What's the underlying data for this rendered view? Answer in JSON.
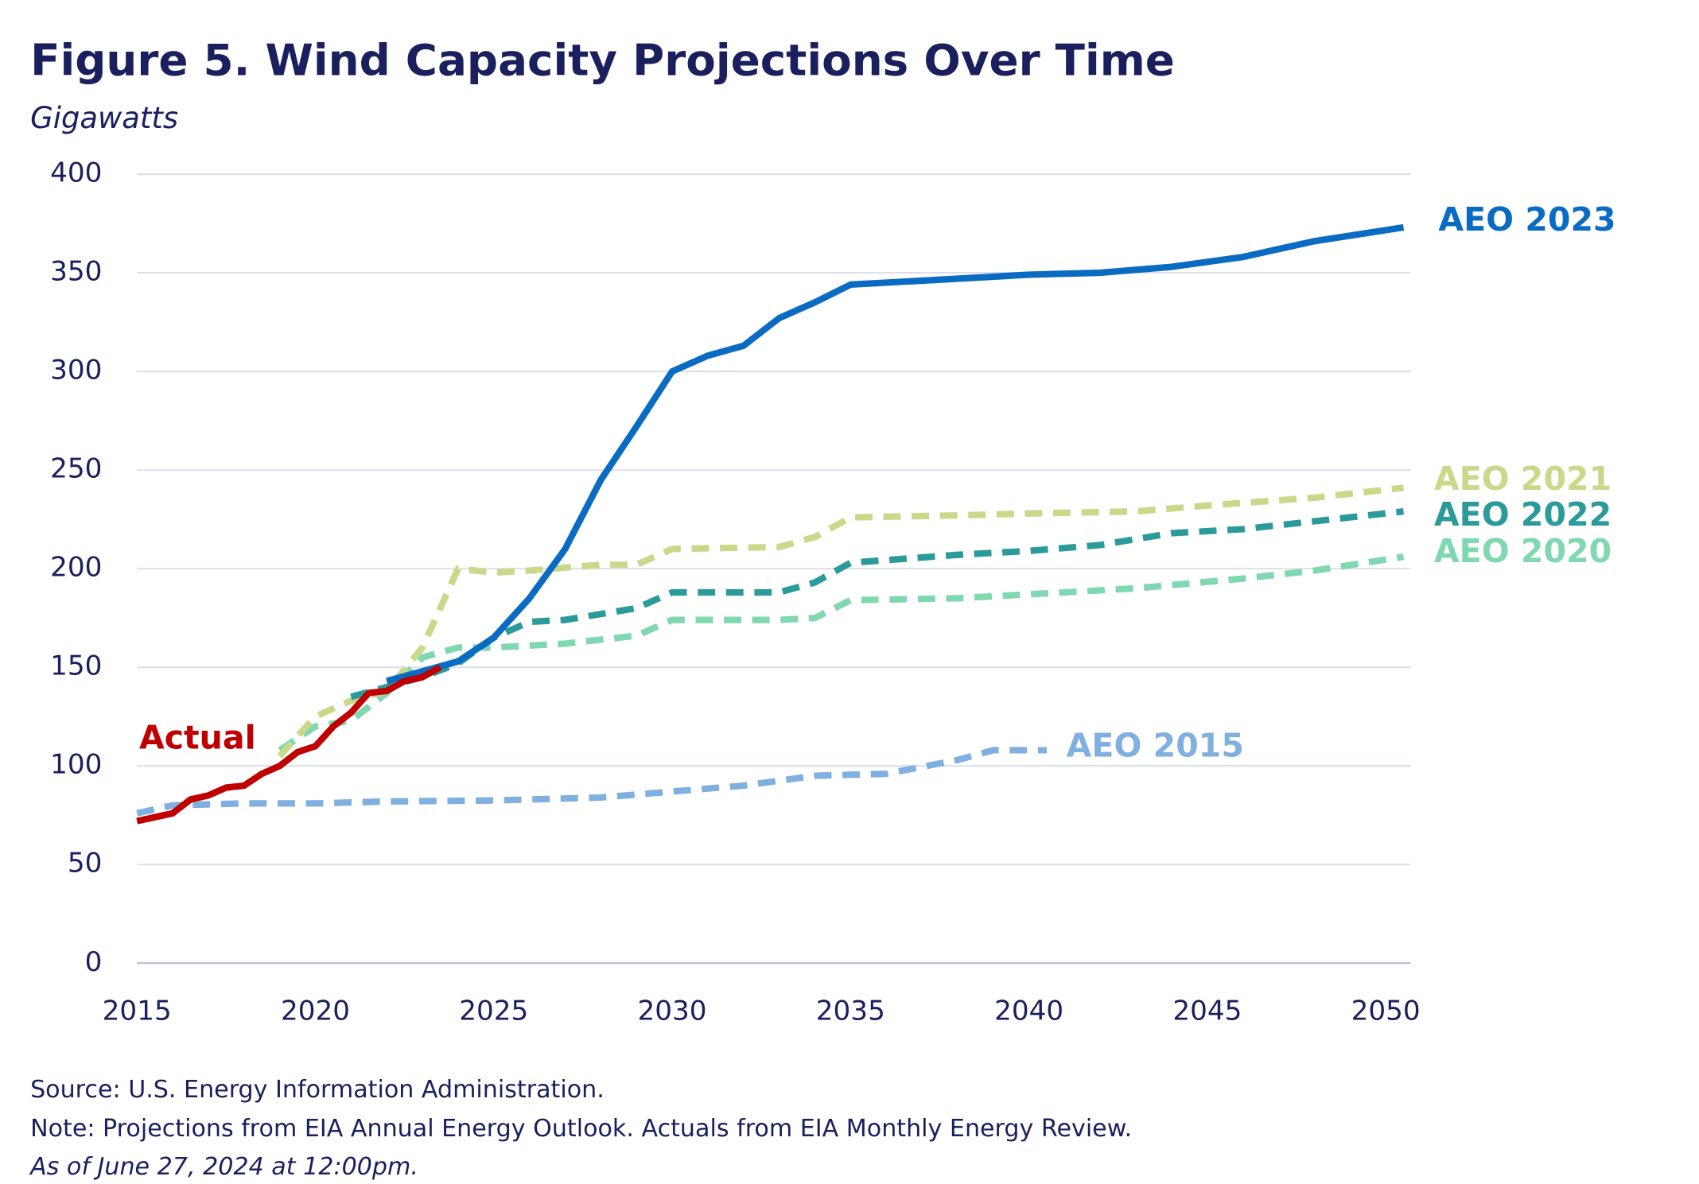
{
  "chart_data": {
    "type": "line",
    "title": "Figure 5. Wind Capacity Projections Over Time",
    "subtitle": "Gigawatts",
    "source": "Source: U.S. Energy Information Administration.",
    "note": "Note: Projections from EIA Annual Energy Outlook. Actuals from EIA Monthly Energy Review.",
    "as_of": "As of June 27, 2024 at 12:00pm.",
    "xlim": [
      2015,
      2050.7
    ],
    "xticks": [
      2015,
      2020,
      2025,
      2030,
      2035,
      2040,
      2045,
      2050
    ],
    "ylim": [
      0,
      400
    ],
    "yticks": [
      0,
      50,
      100,
      150,
      200,
      250,
      300,
      350,
      400
    ],
    "grid": true,
    "series": [
      {
        "name": "AEO 2015",
        "color": "#7fb0e0",
        "dashed": true,
        "x": [
          2015,
          2016,
          2018,
          2020,
          2022,
          2025,
          2028,
          2030,
          2032,
          2034,
          2036,
          2038,
          2039,
          2040.5
        ],
        "values": [
          76,
          80,
          81,
          81,
          82,
          82.5,
          84,
          87,
          90,
          95,
          96,
          103,
          108,
          108
        ]
      },
      {
        "name": "AEO 2020",
        "color": "#7fd8b0",
        "dashed": true,
        "x": [
          2019,
          2020,
          2021,
          2022,
          2023,
          2024,
          2025,
          2027,
          2029,
          2030,
          2033,
          2034,
          2035,
          2038,
          2040,
          2043,
          2046,
          2048,
          2050.5
        ],
        "values": [
          108,
          120,
          123,
          137,
          155,
          160,
          160,
          162,
          166,
          174,
          174,
          175,
          184,
          185,
          187,
          190,
          195,
          199,
          206
        ]
      },
      {
        "name": "AEO 2021",
        "color": "#c9d98a",
        "dashed": true,
        "x": [
          2019,
          2020,
          2021,
          2022,
          2023,
          2024,
          2025,
          2026,
          2028,
          2029,
          2030,
          2033,
          2034,
          2035,
          2038,
          2040,
          2043,
          2045,
          2048,
          2050.5
        ],
        "values": [
          105,
          125,
          133,
          138,
          160,
          200,
          198,
          199,
          202,
          202,
          210,
          211,
          216,
          226,
          227,
          228,
          229,
          232,
          236,
          241
        ]
      },
      {
        "name": "AEO 2022",
        "color": "#2b9a9a",
        "dashed": true,
        "x": [
          2021,
          2022,
          2023,
          2024,
          2025,
          2026,
          2027,
          2029,
          2030,
          2033,
          2034,
          2035,
          2038,
          2040,
          2042,
          2044,
          2046,
          2048,
          2050.5
        ],
        "values": [
          135,
          140,
          145,
          152,
          165,
          173,
          174,
          180,
          188,
          188,
          193,
          203,
          207,
          209,
          212,
          218,
          220,
          224,
          229
        ]
      },
      {
        "name": "AEO 2023",
        "color": "#0a6bc2",
        "dashed": false,
        "x": [
          2022,
          2023,
          2024,
          2025,
          2026,
          2027,
          2028,
          2029,
          2030,
          2031,
          2032,
          2033,
          2034,
          2035,
          2036,
          2038,
          2040,
          2042,
          2044,
          2046,
          2048,
          2050.5
        ],
        "values": [
          143,
          148,
          153,
          165,
          185,
          210,
          245,
          272,
          300,
          308,
          313,
          327,
          335,
          344,
          345,
          347,
          349,
          350,
          353,
          358,
          366,
          373
        ]
      },
      {
        "name": "Actual",
        "color": "#c00000",
        "dashed": false,
        "x": [
          2015,
          2016,
          2016.5,
          2017,
          2017.5,
          2018,
          2018.5,
          2019,
          2019.5,
          2020,
          2020.5,
          2021,
          2021.5,
          2022,
          2022.5,
          2023,
          2023.5
        ],
        "values": [
          72,
          76,
          83,
          85,
          89,
          90,
          96,
          100,
          107,
          110,
          120,
          127,
          137,
          138,
          143,
          145,
          150
        ]
      }
    ]
  }
}
